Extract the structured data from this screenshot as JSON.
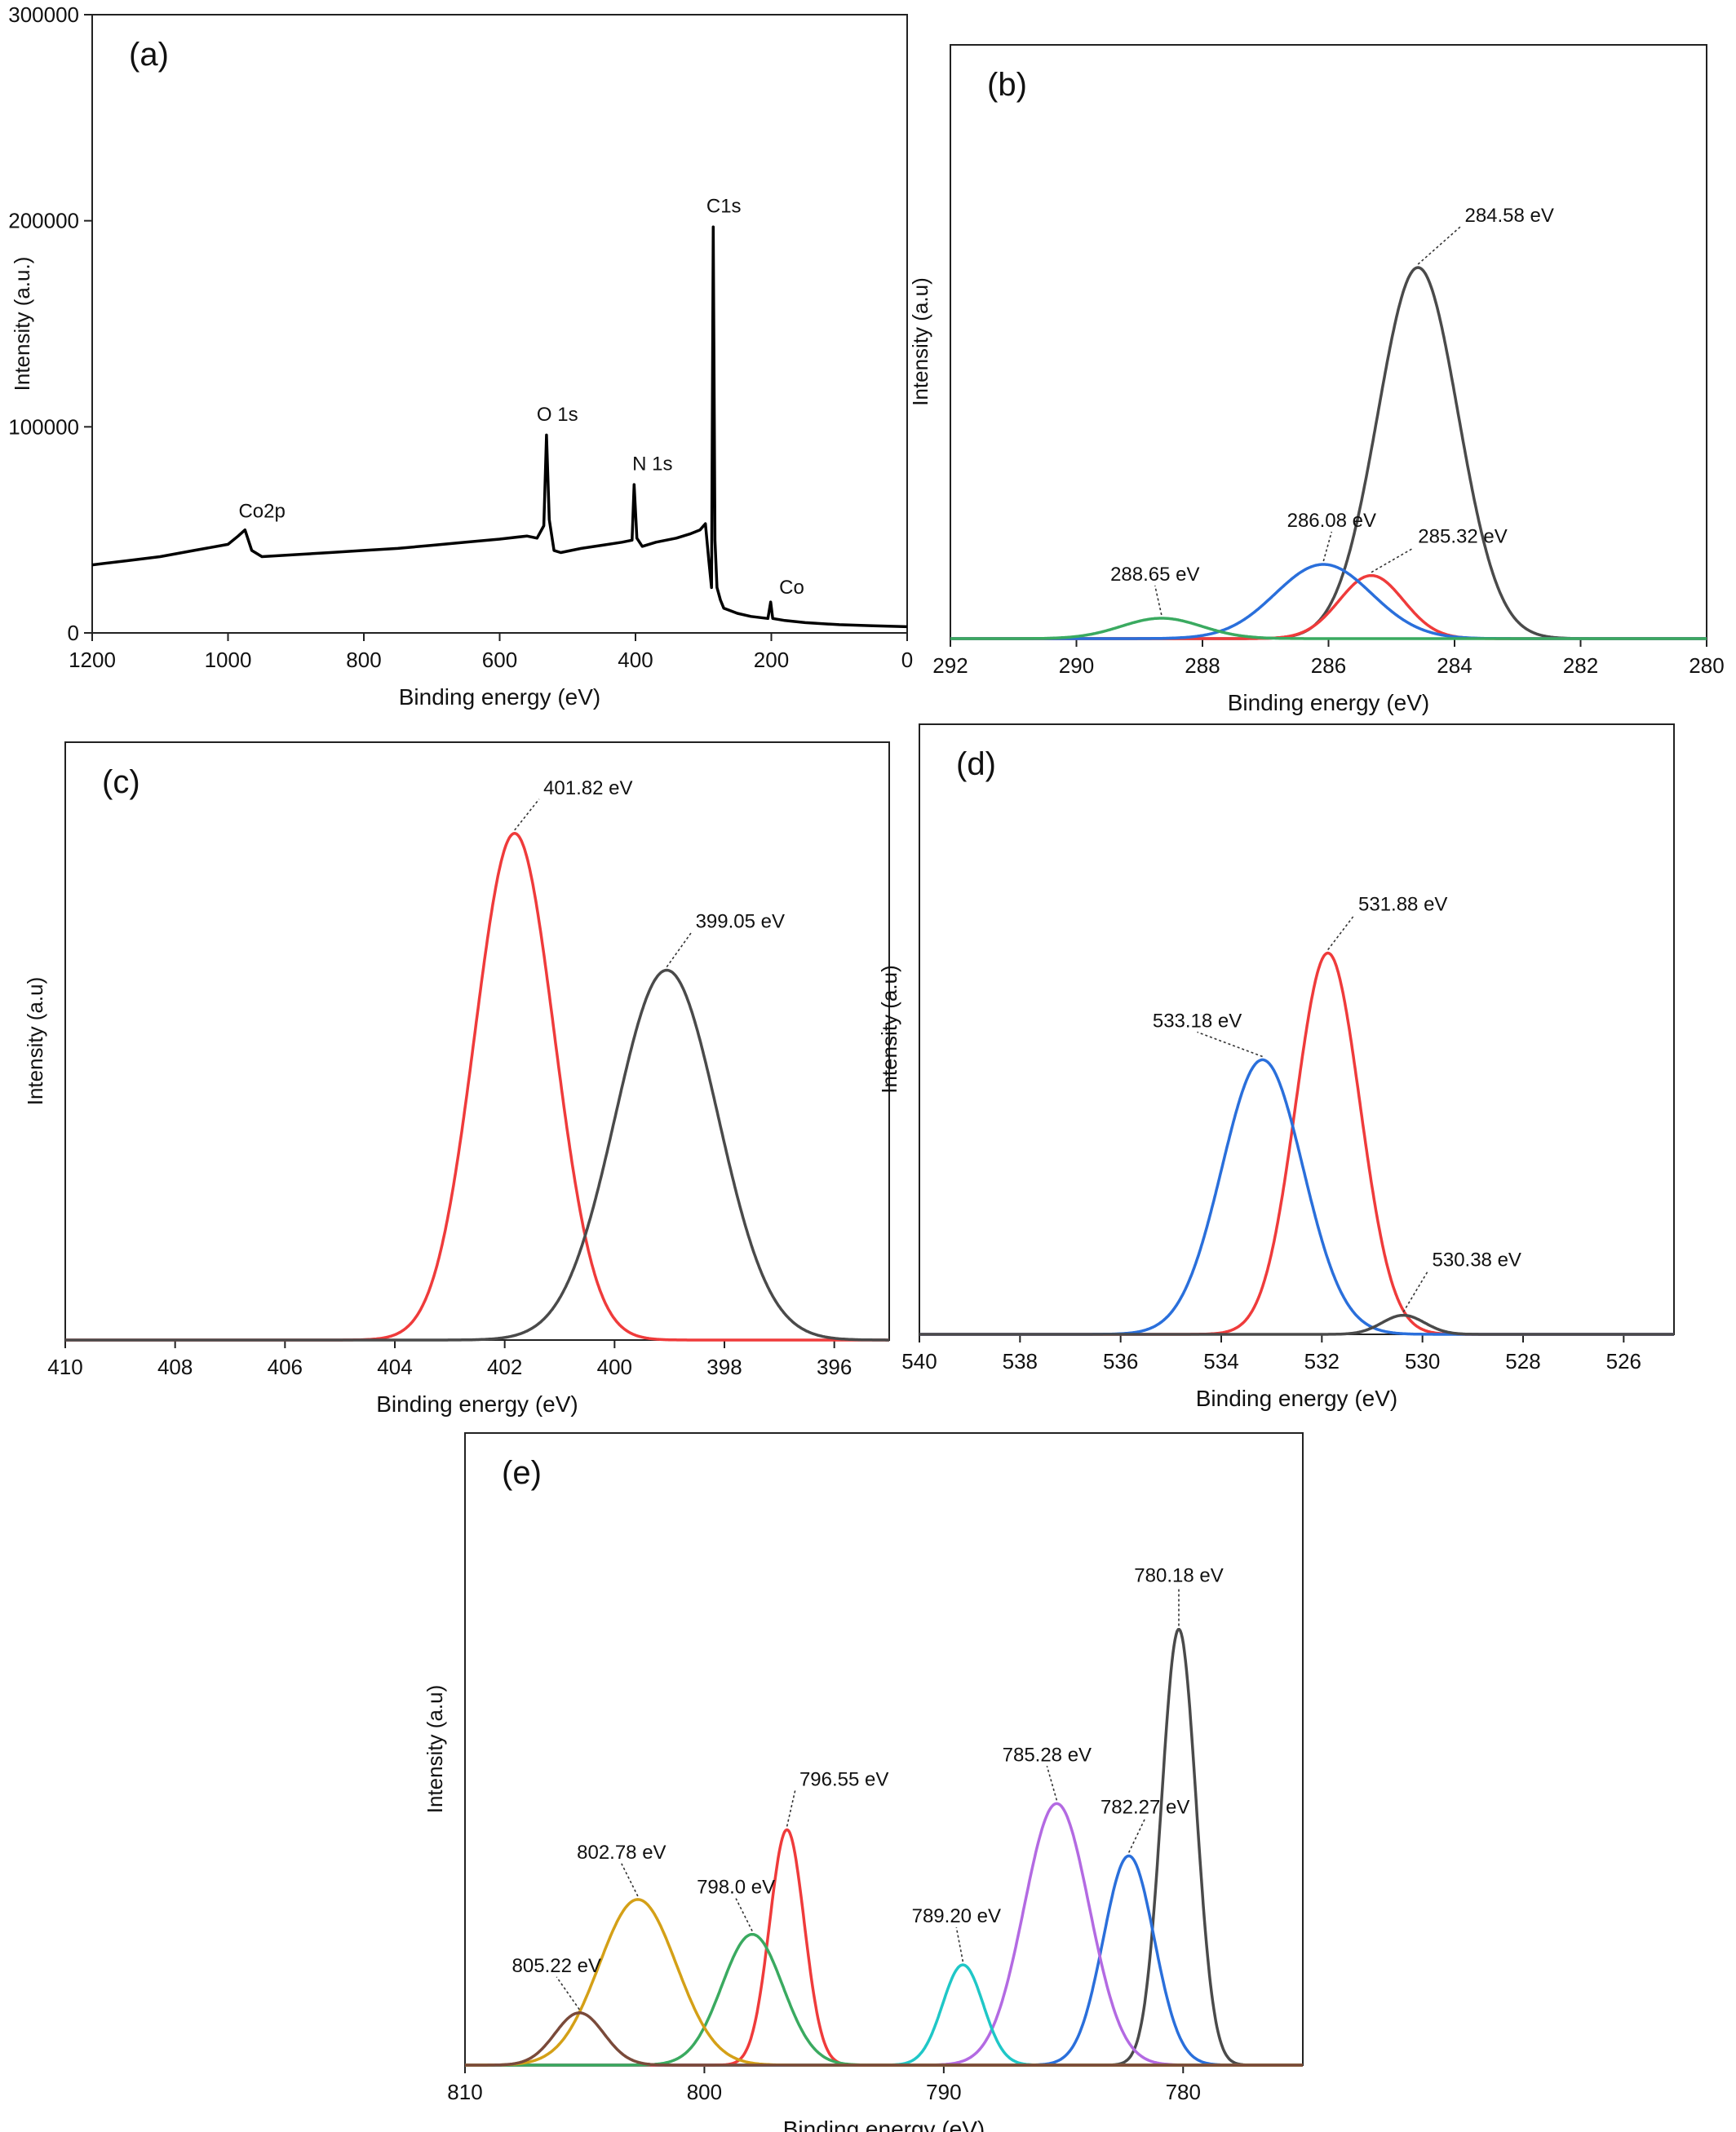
{
  "chart_data": [
    {
      "type": "line",
      "panel_label": "(a)",
      "xlabel": "Binding energy (eV)",
      "ylabel": "Intensity (a.u.)",
      "x_reversed": true,
      "xlim": [
        1200,
        0
      ],
      "ylim": [
        0,
        300000
      ],
      "x_ticks": [
        1200,
        1000,
        800,
        600,
        400,
        200,
        0
      ],
      "y_ticks": [
        0,
        100000,
        200000,
        300000
      ],
      "series": [
        {
          "color": "#000000",
          "points": [
            [
              1200,
              33000
            ],
            [
              1150,
              35000
            ],
            [
              1100,
              37000
            ],
            [
              1050,
              40000
            ],
            [
              1000,
              43000
            ],
            [
              985,
              47000
            ],
            [
              975,
              50000
            ],
            [
              965,
              40000
            ],
            [
              950,
              37000
            ],
            [
              900,
              38000
            ],
            [
              850,
              39000
            ],
            [
              800,
              40000
            ],
            [
              750,
              41000
            ],
            [
              700,
              42500
            ],
            [
              650,
              44000
            ],
            [
              600,
              45500
            ],
            [
              560,
              47000
            ],
            [
              545,
              46000
            ],
            [
              535,
              52000
            ],
            [
              531,
              96000
            ],
            [
              527,
              55000
            ],
            [
              520,
              40000
            ],
            [
              510,
              39000
            ],
            [
              480,
              41000
            ],
            [
              450,
              42500
            ],
            [
              420,
              44000
            ],
            [
              405,
              45000
            ],
            [
              402,
              72000
            ],
            [
              398,
              46000
            ],
            [
              390,
              42000
            ],
            [
              370,
              44000
            ],
            [
              340,
              46000
            ],
            [
              320,
              48000
            ],
            [
              305,
              50000
            ],
            [
              297,
              53000
            ],
            [
              292,
              35000
            ],
            [
              288,
              22000
            ],
            [
              285.5,
              197000
            ],
            [
              283,
              45000
            ],
            [
              280,
              22000
            ],
            [
              275,
              16000
            ],
            [
              270,
              12000
            ],
            [
              250,
              9500
            ],
            [
              230,
              8000
            ],
            [
              205,
              7000
            ],
            [
              201,
              15000
            ],
            [
              198,
              7000
            ],
            [
              180,
              6000
            ],
            [
              150,
              5000
            ],
            [
              100,
              4000
            ],
            [
              50,
              3500
            ],
            [
              0,
              3000
            ]
          ]
        }
      ],
      "annotations": [
        {
          "text": "Co2p",
          "x": 950,
          "y": 56000
        },
        {
          "text": "O 1s",
          "x": 515,
          "y": 103000
        },
        {
          "text": "N 1s",
          "x": 375,
          "y": 79000
        },
        {
          "text": "C1s",
          "x": 270,
          "y": 204000
        },
        {
          "text": "Co",
          "x": 170,
          "y": 19000
        }
      ]
    },
    {
      "type": "line",
      "panel_label": "(b)",
      "xlabel": "Binding energy (eV)",
      "ylabel": "Intensity (a.u)",
      "x_reversed": true,
      "xlim": [
        292,
        280
      ],
      "ylim": [
        0,
        1.6
      ],
      "x_ticks": [
        292,
        290,
        288,
        286,
        284,
        282,
        280
      ],
      "series": [
        {
          "color": "#4a4a4a",
          "center": 284.58,
          "height": 1.0,
          "fwhm": 1.5
        },
        {
          "color": "#ef3b3b",
          "center": 285.32,
          "height": 0.17,
          "fwhm": 1.2
        },
        {
          "color": "#2a6fdb",
          "center": 286.08,
          "height": 0.2,
          "fwhm": 1.8
        },
        {
          "color": "#3aaa60",
          "center": 288.65,
          "height": 0.055,
          "fwhm": 1.5
        }
      ],
      "peak_labels": [
        {
          "text": "284.58 eV",
          "peak": 0
        },
        {
          "text": "285.32 eV",
          "peak": 1
        },
        {
          "text": "286.08 eV",
          "peak": 2
        },
        {
          "text": "288.65 eV",
          "peak": 3
        }
      ]
    },
    {
      "type": "line",
      "panel_label": "(c)",
      "xlabel": "Binding energy (eV)",
      "ylabel": "Intensity (a.u)",
      "x_reversed": true,
      "xlim": [
        410,
        395
      ],
      "ylim": [
        0,
        1.18
      ],
      "x_ticks": [
        410,
        408,
        406,
        404,
        402,
        400,
        398,
        396
      ],
      "series": [
        {
          "color": "#ef3b3b",
          "center": 401.82,
          "height": 1.0,
          "fwhm": 1.7
        },
        {
          "color": "#4a4a4a",
          "center": 399.05,
          "height": 0.73,
          "fwhm": 2.2
        }
      ],
      "peak_labels": [
        {
          "text": "401.82 eV",
          "peak": 0
        },
        {
          "text": "399.05 eV",
          "peak": 1
        }
      ]
    },
    {
      "type": "line",
      "panel_label": "(d)",
      "xlabel": "Binding energy (eV)",
      "ylabel": "Intensity (a.u)",
      "x_reversed": true,
      "xlim": [
        540,
        525
      ],
      "ylim": [
        0,
        1.6
      ],
      "x_ticks": [
        540,
        538,
        536,
        534,
        532,
        530,
        528,
        526
      ],
      "series": [
        {
          "color": "#ef3b3b",
          "center": 531.88,
          "height": 1.0,
          "fwhm": 1.5
        },
        {
          "color": "#2a6fdb",
          "center": 533.18,
          "height": 0.72,
          "fwhm": 1.9
        },
        {
          "color": "#4a4a4a",
          "center": 530.38,
          "height": 0.05,
          "fwhm": 1.0
        }
      ],
      "peak_labels": [
        {
          "text": "531.88 eV",
          "peak": 0
        },
        {
          "text": "533.18 eV",
          "peak": 1
        },
        {
          "text": "530.38 eV",
          "peak": 2
        }
      ]
    },
    {
      "type": "line",
      "panel_label": "(e)",
      "xlabel": "Binding energy (eV)",
      "ylabel": "Intensity (a.u)",
      "x_reversed": true,
      "xlim": [
        810,
        775
      ],
      "ylim": [
        0,
        1.45
      ],
      "x_ticks": [
        810,
        800,
        790,
        780
      ],
      "series": [
        {
          "color": "#4a4a4a",
          "center": 780.18,
          "height": 1.0,
          "fwhm": 1.7
        },
        {
          "color": "#2a6fdb",
          "center": 782.27,
          "height": 0.48,
          "fwhm": 2.5
        },
        {
          "color": "#b36ae2",
          "center": 785.28,
          "height": 0.6,
          "fwhm": 3.2
        },
        {
          "color": "#1fc7c7",
          "center": 789.2,
          "height": 0.23,
          "fwhm": 2.0
        },
        {
          "color": "#ef3b3b",
          "center": 796.55,
          "height": 0.54,
          "fwhm": 1.7
        },
        {
          "color": "#3aaa60",
          "center": 798.0,
          "height": 0.3,
          "fwhm": 3.0
        },
        {
          "color": "#d4a017",
          "center": 802.78,
          "height": 0.38,
          "fwhm": 3.8
        },
        {
          "color": "#7a4a3a",
          "center": 805.22,
          "height": 0.12,
          "fwhm": 2.4
        }
      ],
      "peak_labels": [
        {
          "text": "780.18 eV",
          "peak": 0
        },
        {
          "text": "782.27 eV",
          "peak": 1
        },
        {
          "text": "785.28 eV",
          "peak": 2
        },
        {
          "text": "789.20 eV",
          "peak": 3
        },
        {
          "text": "796.55 eV",
          "peak": 4
        },
        {
          "text": "798.0 eV",
          "peak": 5
        },
        {
          "text": "802.78 eV",
          "peak": 6
        },
        {
          "text": "805.22 eV",
          "peak": 7
        }
      ]
    }
  ]
}
